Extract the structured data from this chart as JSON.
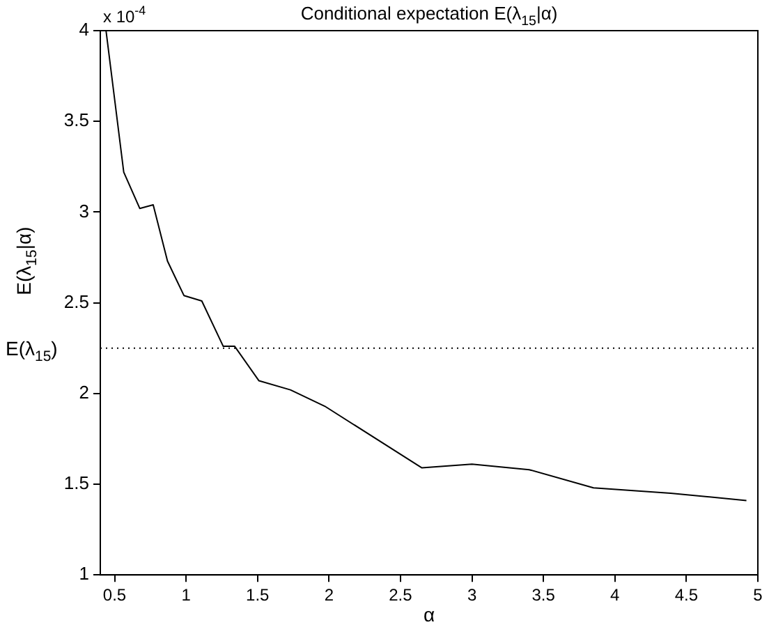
{
  "chart_data": {
    "type": "line",
    "title": "Conditional expectation E(λ$_{15}$|α)",
    "xlabel": "α",
    "ylabel": "E(λ$_{15}$|α)",
    "annotations": [
      "x 10$^{-4}$"
    ],
    "x": [
      0.44,
      0.564,
      0.676,
      0.77,
      0.87,
      0.985,
      1.11,
      1.26,
      1.34,
      1.51,
      1.73,
      1.97,
      2.65,
      3.0,
      3.4,
      3.85,
      4.39,
      4.92
    ],
    "series": [
      {
        "color": "#000000",
        "values": [
          4.0,
          3.22,
          3.02,
          3.04,
          2.73,
          2.54,
          2.51,
          2.26,
          2.26,
          2.07,
          2.02,
          1.93,
          1.59,
          1.61,
          1.58,
          1.48,
          1.45,
          1.41
        ]
      }
    ],
    "xlim": [
      0.4,
      5
    ],
    "xticks": [
      0.5,
      1,
      1.5,
      2,
      2.5,
      3,
      3.5,
      4,
      4.5,
      5
    ],
    "ylim": [
      1,
      4
    ],
    "yticks": [
      1,
      1.5,
      2,
      2.5,
      3,
      3.5,
      4
    ],
    "ref_lines": [
      {
        "axis": "y",
        "value": 2.25,
        "label": "E(λ$_{15}$)",
        "color": "#000000",
        "line_style": "dotted"
      }
    ],
    "grid": false,
    "legend": false,
    "marker": "none",
    "line_style": "solid"
  }
}
